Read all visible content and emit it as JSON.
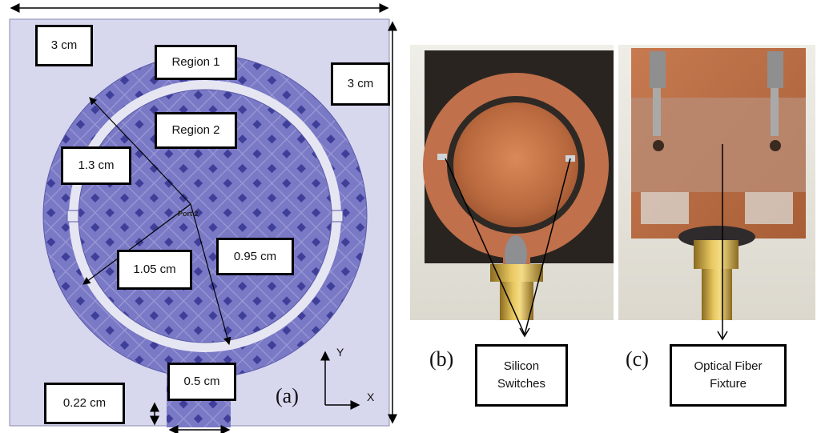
{
  "panel_a": {
    "label": "(a)",
    "tiny_text": "Port 2",
    "axis_x": "X",
    "axis_y": "Y",
    "labels": {
      "top_left": "3 cm",
      "right": "3 cm",
      "region1": "Region 1",
      "region2": "Region 2",
      "r_outer": "1.3 cm",
      "r_mid": "1.05 cm",
      "r_inner": "0.95 cm",
      "feed_width": "0.5 cm",
      "feed_gap": "0.22 cm"
    }
  },
  "panel_b": {
    "label": "(b)",
    "callout_line1": "Silicon",
    "callout_line2": "Switches"
  },
  "panel_c": {
    "label": "(c)",
    "callout_line1": "Optical Fiber",
    "callout_line2": "Fixture"
  },
  "colors": {
    "substrate": "#d7d7ee",
    "patch": "#7a79c6",
    "patch_dot": "#3f3e99",
    "copper": "#c8794d",
    "board_dark": "#2a2420"
  }
}
